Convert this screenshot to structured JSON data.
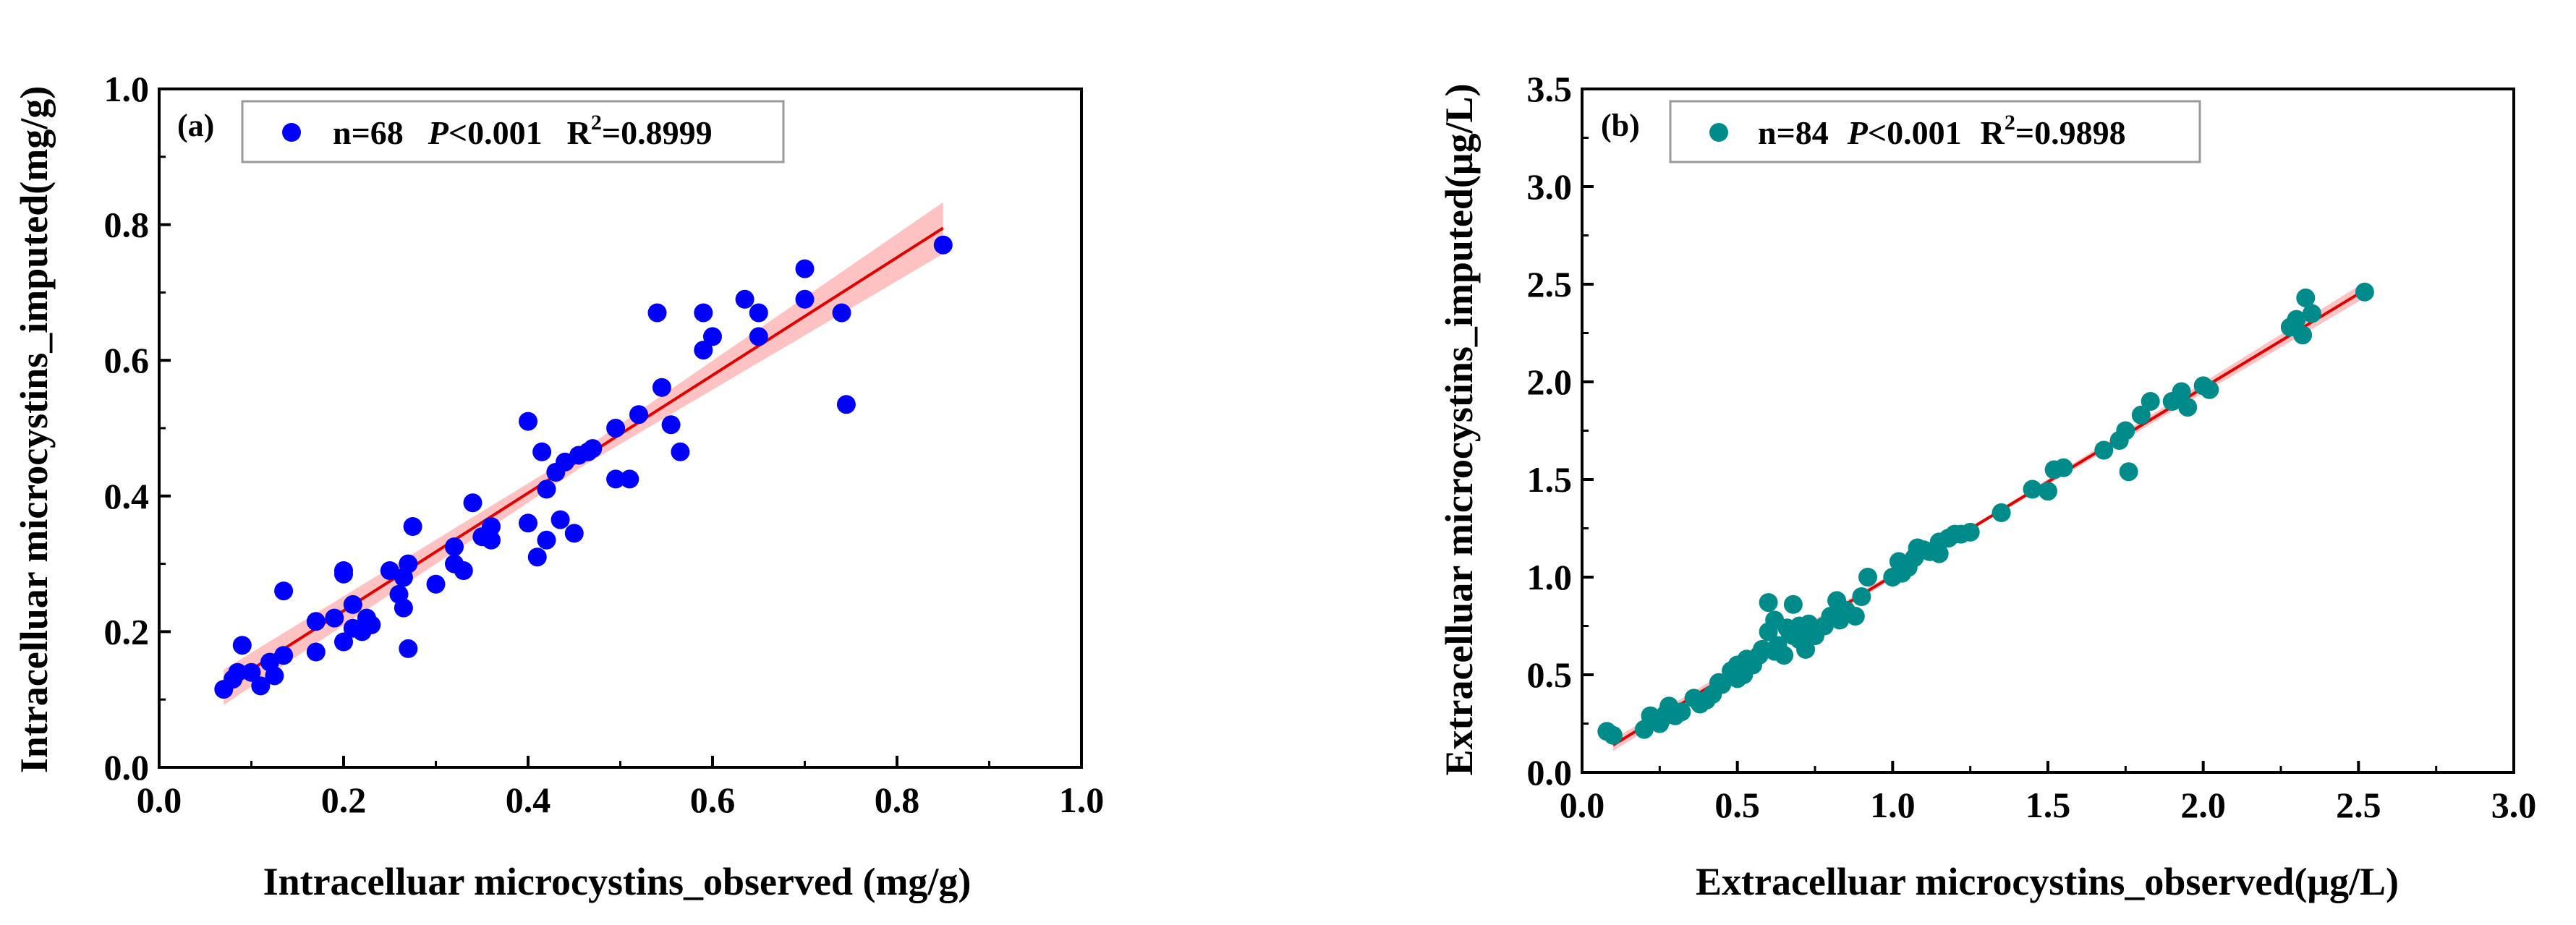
{
  "chart_data": [
    {
      "type": "scatter",
      "panel_label": "(a)",
      "xlabel": "Intracelluar microcystins_observed (mg/g)",
      "ylabel": "Intracelluar microcystins_imputed(mg/g)",
      "xlim": [
        0.0,
        1.0
      ],
      "ylim": [
        0.0,
        1.0
      ],
      "xticks": [
        "0.0",
        "0.2",
        "0.4",
        "0.6",
        "0.8",
        "1.0"
      ],
      "yticks": [
        "0.0",
        "0.2",
        "0.4",
        "0.6",
        "0.8",
        "1.0"
      ],
      "legend": {
        "n": "n=68",
        "p_italic": "P",
        "p_rest": "<0.001",
        "r2_prefix": "R",
        "r2_sup": "2",
        "r2_value": "=0.8999"
      },
      "point_color": "#0000ff",
      "fit": {
        "x": [
          0.07,
          0.85
        ],
        "y": [
          0.118,
          0.795
        ]
      },
      "band_halfwidth": [
        0.026,
        0.012,
        0.038
      ],
      "points": [
        [
          0.07,
          0.115
        ],
        [
          0.08,
          0.13
        ],
        [
          0.09,
          0.18
        ],
        [
          0.1,
          0.14
        ],
        [
          0.11,
          0.12
        ],
        [
          0.12,
          0.155
        ],
        [
          0.125,
          0.135
        ],
        [
          0.135,
          0.26
        ],
        [
          0.135,
          0.165
        ],
        [
          0.17,
          0.215
        ],
        [
          0.17,
          0.17
        ],
        [
          0.19,
          0.22
        ],
        [
          0.2,
          0.29
        ],
        [
          0.2,
          0.285
        ],
        [
          0.2,
          0.185
        ],
        [
          0.21,
          0.24
        ],
        [
          0.21,
          0.205
        ],
        [
          0.22,
          0.2
        ],
        [
          0.225,
          0.22
        ],
        [
          0.23,
          0.21
        ],
        [
          0.25,
          0.29
        ],
        [
          0.26,
          0.255
        ],
        [
          0.265,
          0.235
        ],
        [
          0.265,
          0.28
        ],
        [
          0.27,
          0.3
        ],
        [
          0.27,
          0.175
        ],
        [
          0.275,
          0.355
        ],
        [
          0.3,
          0.27
        ],
        [
          0.32,
          0.325
        ],
        [
          0.33,
          0.29
        ],
        [
          0.34,
          0.39
        ],
        [
          0.35,
          0.34
        ],
        [
          0.36,
          0.355
        ],
        [
          0.36,
          0.335
        ],
        [
          0.4,
          0.51
        ],
        [
          0.4,
          0.36
        ],
        [
          0.41,
          0.31
        ],
        [
          0.415,
          0.465
        ],
        [
          0.42,
          0.335
        ],
        [
          0.42,
          0.41
        ],
        [
          0.43,
          0.435
        ],
        [
          0.435,
          0.365
        ],
        [
          0.44,
          0.45
        ],
        [
          0.45,
          0.345
        ],
        [
          0.455,
          0.46
        ],
        [
          0.465,
          0.465
        ],
        [
          0.47,
          0.47
        ],
        [
          0.495,
          0.5
        ],
        [
          0.495,
          0.425
        ],
        [
          0.51,
          0.425
        ],
        [
          0.52,
          0.52
        ],
        [
          0.54,
          0.67
        ],
        [
          0.545,
          0.56
        ],
        [
          0.555,
          0.505
        ],
        [
          0.565,
          0.465
        ],
        [
          0.59,
          0.67
        ],
        [
          0.59,
          0.615
        ],
        [
          0.6,
          0.635
        ],
        [
          0.635,
          0.69
        ],
        [
          0.65,
          0.67
        ],
        [
          0.65,
          0.635
        ],
        [
          0.7,
          0.69
        ],
        [
          0.7,
          0.735
        ],
        [
          0.74,
          0.67
        ],
        [
          0.745,
          0.535
        ],
        [
          0.85,
          0.77
        ],
        [
          0.085,
          0.14
        ],
        [
          0.32,
          0.3
        ]
      ]
    },
    {
      "type": "scatter",
      "panel_label": "(b)",
      "xlabel": "Extracelluar microcystins_observed(μg/L)",
      "ylabel": "Extracelluar microcystins_imputed(μg/L)",
      "xlim": [
        0.0,
        3.0
      ],
      "ylim": [
        0.0,
        3.5
      ],
      "xticks": [
        "0.0",
        "0.5",
        "1.0",
        "1.5",
        "2.0",
        "2.5",
        "3.0"
      ],
      "yticks": [
        "0.0",
        "0.5",
        "1.0",
        "1.5",
        "2.0",
        "2.5",
        "3.0",
        "3.5"
      ],
      "legend": {
        "n": "n=84",
        "p_italic": "P",
        "p_rest": "<0.001",
        "r2_prefix": "R",
        "r2_sup": "2",
        "r2_value": "=0.9898"
      },
      "point_color": "#008b8b",
      "fit": {
        "x": [
          0.1,
          2.52
        ],
        "y": [
          0.14,
          2.47
        ]
      },
      "band_halfwidth": [
        0.03,
        0.01,
        0.04
      ],
      "points": [
        [
          0.08,
          0.21
        ],
        [
          0.1,
          0.19
        ],
        [
          0.2,
          0.22
        ],
        [
          0.22,
          0.29
        ],
        [
          0.23,
          0.27
        ],
        [
          0.25,
          0.25
        ],
        [
          0.27,
          0.3
        ],
        [
          0.28,
          0.34
        ],
        [
          0.3,
          0.29
        ],
        [
          0.32,
          0.31
        ],
        [
          0.36,
          0.38
        ],
        [
          0.38,
          0.35
        ],
        [
          0.4,
          0.37
        ],
        [
          0.42,
          0.4
        ],
        [
          0.44,
          0.46
        ],
        [
          0.48,
          0.52
        ],
        [
          0.5,
          0.48
        ],
        [
          0.5,
          0.55
        ],
        [
          0.52,
          0.5
        ],
        [
          0.53,
          0.58
        ],
        [
          0.55,
          0.55
        ],
        [
          0.57,
          0.6
        ],
        [
          0.58,
          0.63
        ],
        [
          0.6,
          0.87
        ],
        [
          0.6,
          0.72
        ],
        [
          0.62,
          0.78
        ],
        [
          0.63,
          0.65
        ],
        [
          0.65,
          0.6
        ],
        [
          0.67,
          0.71
        ],
        [
          0.68,
          0.86
        ],
        [
          0.7,
          0.75
        ],
        [
          0.7,
          0.68
        ],
        [
          0.72,
          0.63
        ],
        [
          0.73,
          0.76
        ],
        [
          0.75,
          0.7
        ],
        [
          0.78,
          0.75
        ],
        [
          0.8,
          0.8
        ],
        [
          0.82,
          0.88
        ],
        [
          0.83,
          0.78
        ],
        [
          0.85,
          0.83
        ],
        [
          0.88,
          0.8
        ],
        [
          0.9,
          0.9
        ],
        [
          0.92,
          1.0
        ],
        [
          1.0,
          1.0
        ],
        [
          1.02,
          1.08
        ],
        [
          1.05,
          1.05
        ],
        [
          1.07,
          1.1
        ],
        [
          1.08,
          1.15
        ],
        [
          1.1,
          1.14
        ],
        [
          1.12,
          1.13
        ],
        [
          1.15,
          1.18
        ],
        [
          1.18,
          1.2
        ],
        [
          1.2,
          1.22
        ],
        [
          1.22,
          1.22
        ],
        [
          1.25,
          1.23
        ],
        [
          1.35,
          1.33
        ],
        [
          1.45,
          1.45
        ],
        [
          1.5,
          1.44
        ],
        [
          1.52,
          1.55
        ],
        [
          1.55,
          1.56
        ],
        [
          1.68,
          1.65
        ],
        [
          1.73,
          1.7
        ],
        [
          1.75,
          1.75
        ],
        [
          1.76,
          1.54
        ],
        [
          1.8,
          1.83
        ],
        [
          1.83,
          1.9
        ],
        [
          1.9,
          1.9
        ],
        [
          1.93,
          1.95
        ],
        [
          1.95,
          1.87
        ],
        [
          2.0,
          1.98
        ],
        [
          2.02,
          1.96
        ],
        [
          2.28,
          2.28
        ],
        [
          2.3,
          2.32
        ],
        [
          2.32,
          2.24
        ],
        [
          2.33,
          2.43
        ],
        [
          2.35,
          2.35
        ],
        [
          2.52,
          2.46
        ],
        [
          0.45,
          0.45
        ],
        [
          0.62,
          0.62
        ],
        [
          0.66,
          0.74
        ],
        [
          0.68,
          0.7
        ],
        [
          1.03,
          1.02
        ],
        [
          1.15,
          1.12
        ],
        [
          0.26,
          0.28
        ]
      ]
    }
  ]
}
